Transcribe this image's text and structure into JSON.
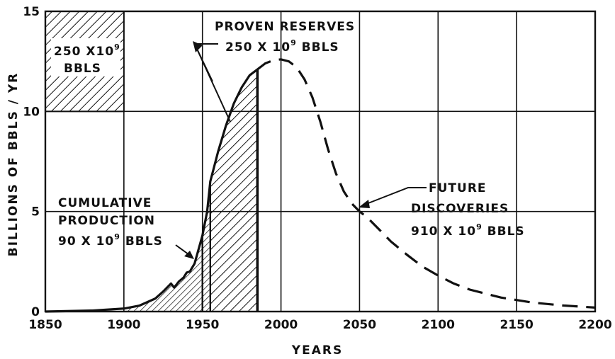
{
  "chart_data": {
    "type": "area",
    "xlabel": "YEARS",
    "ylabel": "BILLIONS OF BBLS / YR",
    "xlim": [
      1850,
      2200
    ],
    "ylim": [
      0,
      15
    ],
    "xticks": [
      "1850",
      "1900",
      "1950",
      "2000",
      "2050",
      "2100",
      "2150",
      "2200"
    ],
    "yticks": [
      "0",
      "5",
      "10",
      "15"
    ],
    "grid": true,
    "series": [
      {
        "style": "solid",
        "x": [
          1850,
          1880,
          1900,
          1910,
          1920,
          1925,
          1930,
          1932,
          1935,
          1938,
          1940,
          1942,
          1945,
          1950,
          1953,
          1955,
          1960,
          1965,
          1970,
          1975,
          1980,
          1985
        ],
        "y": [
          0.0,
          0.05,
          0.15,
          0.3,
          0.65,
          1.0,
          1.4,
          1.2,
          1.5,
          1.7,
          1.95,
          2.0,
          2.4,
          3.8,
          5.0,
          6.5,
          8.0,
          9.3,
          10.4,
          11.2,
          11.8,
          12.1
        ]
      },
      {
        "style": "dashed",
        "x": [
          1985,
          1990,
          1995,
          2000,
          2005,
          2010,
          2015,
          2020,
          2025,
          2030,
          2035,
          2040,
          2045,
          2050,
          2055,
          2060,
          2070,
          2080,
          2090,
          2100,
          2110,
          2120,
          2140,
          2160,
          2180,
          2200
        ],
        "y": [
          12.1,
          12.4,
          12.55,
          12.6,
          12.5,
          12.2,
          11.6,
          10.7,
          9.5,
          8.1,
          6.9,
          6.0,
          5.4,
          5.0,
          4.7,
          4.3,
          3.5,
          2.85,
          2.25,
          1.8,
          1.4,
          1.1,
          0.7,
          0.45,
          0.3,
          0.2
        ]
      }
    ],
    "shaded_regions": [
      {
        "pattern": "fine-hatch",
        "x_from": 1900,
        "x_to": 1955
      },
      {
        "pattern": "coarse-hatch",
        "x_from": 1955,
        "x_to": 1985
      }
    ],
    "marker_lines_x": [
      1950,
      1955,
      1985
    ],
    "legend_box": {
      "x_from": 1850,
      "x_to": 1900,
      "y_from": 10,
      "y_to": 15,
      "pattern": "coarse-hatch"
    },
    "annotations": {
      "box_label_1": "250 X10",
      "box_label_1_sup": "9",
      "box_label_2": "BBLS",
      "proven_1": "PROVEN  RESERVES",
      "proven_2": "250  X 10",
      "proven_2_sup": "9",
      "proven_2_tail": " BBLS",
      "cumulative_1": "CUMULATIVE",
      "cumulative_2": "PRODUCTION",
      "cumulative_3": "90  X 10",
      "cumulative_3_sup": "9",
      "cumulative_3_tail": " BBLS",
      "future_1": "FUTURE",
      "future_2": "DISCOVERIES",
      "future_3": "910  X 10",
      "future_3_sup": "9",
      "future_3_tail": " BBLS"
    }
  }
}
